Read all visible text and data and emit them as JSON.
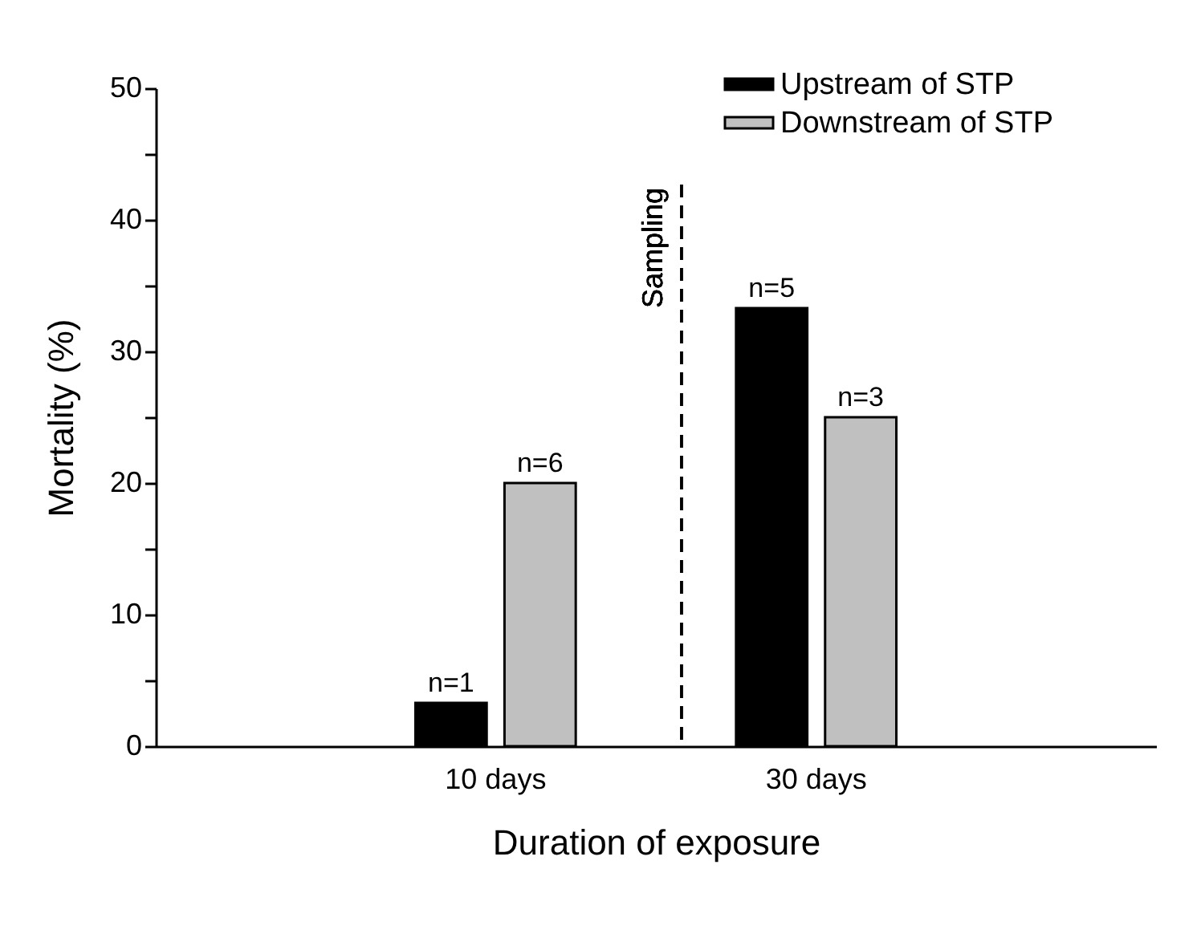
{
  "chart_data": {
    "type": "bar",
    "xlabel": "Duration of exposure",
    "ylabel": "Mortality (%)",
    "categories": [
      "10 days",
      "30 days"
    ],
    "series": [
      {
        "name": "Upstream of STP",
        "color": "#000000",
        "values": [
          3.3,
          33.3
        ]
      },
      {
        "name": "Downstream of STP",
        "color": "#c0c0c0",
        "values": [
          20,
          25
        ]
      }
    ],
    "annotations": [
      "n=1",
      "n=6",
      "n=5",
      "n=3"
    ],
    "ylim": [
      0,
      50
    ],
    "yticks": [
      0,
      {
        "value": 5,
        "label": null
      },
      10,
      {
        "value": 15,
        "label": null
      },
      20,
      {
        "value": 25,
        "label": null
      },
      30,
      {
        "value": 35,
        "label": null
      },
      40,
      {
        "value": 45,
        "label": null
      },
      50
    ],
    "ref_lines": [
      {
        "axis": "x",
        "label": "Sampling",
        "line_style": "dashed",
        "color": "#000000"
      }
    ],
    "legend": "top right",
    "grid": false
  }
}
